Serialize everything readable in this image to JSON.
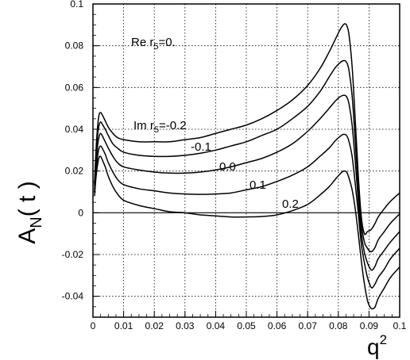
{
  "chart_data": {
    "type": "line",
    "xlabel": "q",
    "xlabel_sup": "2",
    "ylabel": "A",
    "ylabel_sub": "N",
    "ylabel_tail": "( t )",
    "xlim": [
      0,
      0.1
    ],
    "ylim": [
      -0.05,
      0.1
    ],
    "x_ticks": [
      0,
      0.01,
      0.02,
      0.03,
      0.04,
      0.05,
      0.06,
      0.07,
      0.08,
      0.09,
      0.1
    ],
    "x_tick_labels": [
      "0",
      "0.01",
      "0.02",
      "0.03",
      "0.04",
      "0.05",
      "0.06",
      "0.07",
      "0.08",
      "0.09",
      "0.1"
    ],
    "y_ticks": [
      -0.04,
      -0.02,
      0,
      0.02,
      0.04,
      0.06,
      0.08,
      0.1
    ],
    "y_tick_labels": [
      "-0.04",
      "-0.02",
      "0",
      "0.02",
      "0.04",
      "0.06",
      "0.08",
      "0.1"
    ],
    "grid": true,
    "annotations": {
      "re_text": "Re r",
      "re_sub": "5",
      "re_tail": "=0.",
      "im_text": "Im r",
      "im_sub": "5",
      "im_tail": "=-0.2",
      "label_m01": "-0.1",
      "label_00": "0.0",
      "label_01": "0.1",
      "label_02": "0.2"
    },
    "x": [
      0.0005,
      0.001,
      0.0015,
      0.002,
      0.0025,
      0.003,
      0.004,
      0.005,
      0.0065,
      0.008,
      0.01,
      0.015,
      0.02,
      0.025,
      0.03,
      0.035,
      0.04,
      0.045,
      0.05,
      0.055,
      0.06,
      0.065,
      0.07,
      0.074,
      0.077,
      0.079,
      0.0805,
      0.0815,
      0.0822,
      0.0828,
      0.0835,
      0.0845,
      0.0855,
      0.0865,
      0.0875,
      0.0885,
      0.0895,
      0.0903,
      0.091,
      0.092,
      0.093,
      0.095,
      0.097,
      0.1
    ],
    "series": [
      {
        "name": "-0.2",
        "values": [
          0.014,
          0.03,
          0.041,
          0.047,
          0.048,
          0.047,
          0.044,
          0.041,
          0.038,
          0.036,
          0.035,
          0.034,
          0.034,
          0.034,
          0.035,
          0.036,
          0.038,
          0.04,
          0.042,
          0.045,
          0.049,
          0.054,
          0.061,
          0.069,
          0.077,
          0.083,
          0.0875,
          0.0898,
          0.0905,
          0.0895,
          0.085,
          0.07,
          0.045,
          0.018,
          -0.002,
          -0.01,
          -0.009,
          -0.0085,
          -0.0075,
          -0.005,
          -0.002,
          0.002,
          0.0055,
          0.0095
        ]
      },
      {
        "name": "-0.1",
        "values": [
          0.013,
          0.027,
          0.037,
          0.042,
          0.0435,
          0.0425,
          0.04,
          0.037,
          0.033,
          0.031,
          0.029,
          0.0275,
          0.027,
          0.027,
          0.0275,
          0.0285,
          0.03,
          0.032,
          0.034,
          0.037,
          0.04,
          0.045,
          0.051,
          0.058,
          0.065,
          0.0695,
          0.0718,
          0.0728,
          0.0728,
          0.0718,
          0.068,
          0.056,
          0.035,
          0.012,
          -0.005,
          -0.014,
          -0.017,
          -0.0185,
          -0.0185,
          -0.0165,
          -0.013,
          -0.009,
          -0.005,
          -0.0005
        ]
      },
      {
        "name": "0.0",
        "values": [
          0.011,
          0.023,
          0.032,
          0.0365,
          0.038,
          0.037,
          0.034,
          0.031,
          0.027,
          0.024,
          0.022,
          0.0205,
          0.0195,
          0.019,
          0.019,
          0.0195,
          0.0205,
          0.022,
          0.024,
          0.026,
          0.029,
          0.033,
          0.039,
          0.045,
          0.05,
          0.0535,
          0.0555,
          0.0562,
          0.0562,
          0.0553,
          0.052,
          0.042,
          0.025,
          0.006,
          -0.01,
          -0.019,
          -0.024,
          -0.0265,
          -0.0275,
          -0.0255,
          -0.022,
          -0.018,
          -0.014,
          -0.009
        ]
      },
      {
        "name": "0.1",
        "values": [
          0.01,
          0.02,
          0.027,
          0.031,
          0.032,
          0.031,
          0.028,
          0.024,
          0.0195,
          0.016,
          0.0135,
          0.0115,
          0.0105,
          0.0095,
          0.009,
          0.0088,
          0.009,
          0.0095,
          0.011,
          0.0125,
          0.015,
          0.018,
          0.022,
          0.027,
          0.031,
          0.0345,
          0.0365,
          0.0375,
          0.0375,
          0.0368,
          0.034,
          0.027,
          0.014,
          0.0,
          -0.015,
          -0.024,
          -0.031,
          -0.0345,
          -0.036,
          -0.034,
          -0.031,
          -0.027,
          -0.022,
          -0.017
        ]
      },
      {
        "name": "0.2",
        "values": [
          0.008,
          0.017,
          0.023,
          0.0265,
          0.027,
          0.0255,
          0.022,
          0.0175,
          0.0125,
          0.009,
          0.006,
          0.0035,
          0.002,
          0.0005,
          0.0,
          -0.001,
          -0.0015,
          -0.002,
          -0.002,
          -0.0018,
          -0.001,
          0.001,
          0.004,
          0.0085,
          0.0125,
          0.016,
          0.0185,
          0.0198,
          0.02,
          0.0193,
          0.0165,
          0.011,
          0.002,
          -0.01,
          -0.023,
          -0.034,
          -0.042,
          -0.045,
          -0.046,
          -0.045,
          -0.041,
          -0.036,
          -0.031,
          -0.026
        ]
      }
    ]
  }
}
